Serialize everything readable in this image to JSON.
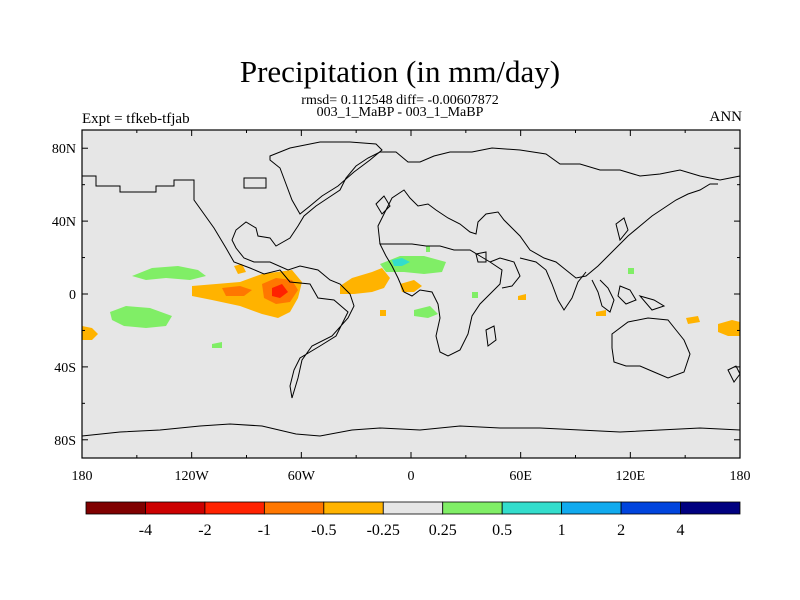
{
  "title": "Precipitation (in mm/day)",
  "stats_line": "rmsd= 0.112548 diff= -0.00607872",
  "subtitle": "003_1_MaBP - 003_1_MaBP",
  "left_label": "Expt = tfkeb-tfjab",
  "right_label": "ANN",
  "colors": {
    "ocean": "#e6e6e6",
    "coastline": "#000000",
    "dark_red": "#800000",
    "red": "#cc0000",
    "red_orange": "#ff2200",
    "orange": "#ff7700",
    "yellow_orange": "#ffb300",
    "neutral": "#e6e6e6",
    "light_green": "#80ee66",
    "aqua": "#33ddcc",
    "light_blue": "#11aaee",
    "blue": "#0044dd",
    "navy": "#000080"
  },
  "chart_data": {
    "type": "heatmap",
    "title": "Precipitation (in mm/day)",
    "projection": "cylindrical-equidistant",
    "lon_range": [
      -180,
      180
    ],
    "lat_range": [
      -90,
      90
    ],
    "x_ticks": [
      "180",
      "120W",
      "60W",
      "0",
      "60E",
      "120E",
      "180"
    ],
    "x_tick_values": [
      -180,
      -120,
      -60,
      0,
      60,
      120,
      180
    ],
    "y_ticks": [
      "80N",
      "40N",
      "0",
      "40S",
      "80S"
    ],
    "y_tick_values": [
      80,
      40,
      0,
      -40,
      -80
    ],
    "colorbar": {
      "labels": [
        "-4",
        "-2",
        "-1",
        "-0.5",
        "-0.25",
        "0.25",
        "0.5",
        "1",
        "2",
        "4"
      ],
      "colors": [
        "#800000",
        "#cc0000",
        "#ff2200",
        "#ff7700",
        "#ffb300",
        "#e6e6e6",
        "#80ee66",
        "#33ddcc",
        "#11aaee",
        "#0044dd",
        "#000080"
      ]
    },
    "anomaly_regions": [
      {
        "name": "central-pacific-negative",
        "level": "-0.5 to -0.25",
        "lon": [
          -130,
          -80
        ],
        "lat": [
          -5,
          5
        ]
      },
      {
        "name": "panama-negative-core",
        "level": "-1 to -0.5",
        "lon": [
          -85,
          -70
        ],
        "lat": [
          -5,
          5
        ]
      },
      {
        "name": "atlantic-negative",
        "level": "-0.5 to -0.25",
        "lon": [
          -40,
          -15
        ],
        "lat": [
          -2,
          12
        ]
      },
      {
        "name": "west-africa-positive",
        "level": "0.25 to 1",
        "lon": [
          -15,
          25
        ],
        "lat": [
          12,
          20
        ]
      },
      {
        "name": "south-pacific-positive",
        "level": "0.25 to 0.5",
        "lon": [
          -165,
          -130
        ],
        "lat": [
          -12,
          -25
        ]
      },
      {
        "name": "north-pacific-positive",
        "level": "0.25 to 0.5",
        "lon": [
          -155,
          -115
        ],
        "lat": [
          10,
          20
        ]
      }
    ]
  }
}
